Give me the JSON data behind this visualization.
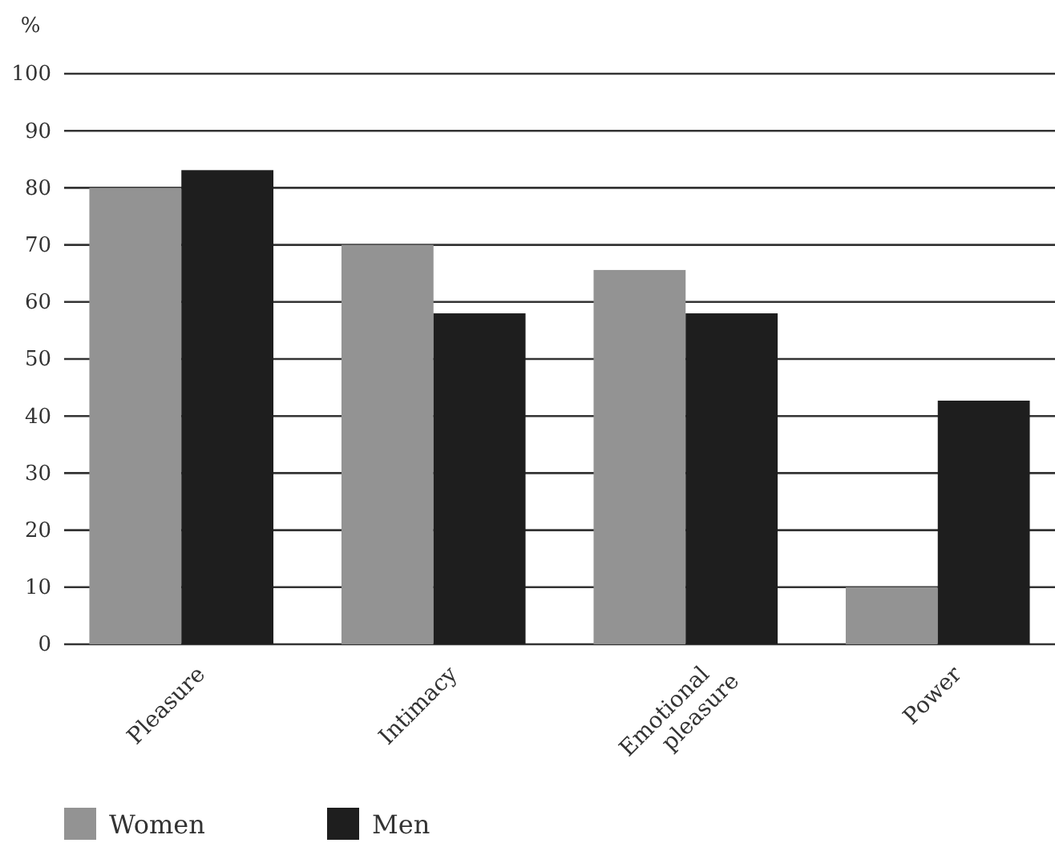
{
  "chart_data": {
    "type": "bar",
    "ylabel": "%",
    "categories": [
      "Pleasure",
      "Intimacy",
      "Emotional pleasure",
      "Power"
    ],
    "series": [
      {
        "name": "Women",
        "color": "#939393",
        "values": [
          80,
          70,
          65.6,
          10
        ]
      },
      {
        "name": "Men",
        "color": "#1e1e1e",
        "values": [
          83.1,
          58,
          58,
          42.7
        ]
      }
    ],
    "ylim": [
      0,
      100
    ],
    "yticks": [
      0,
      10,
      20,
      30,
      40,
      50,
      60,
      70,
      80,
      90,
      100
    ],
    "grid": "y",
    "legend": "bottom left"
  }
}
